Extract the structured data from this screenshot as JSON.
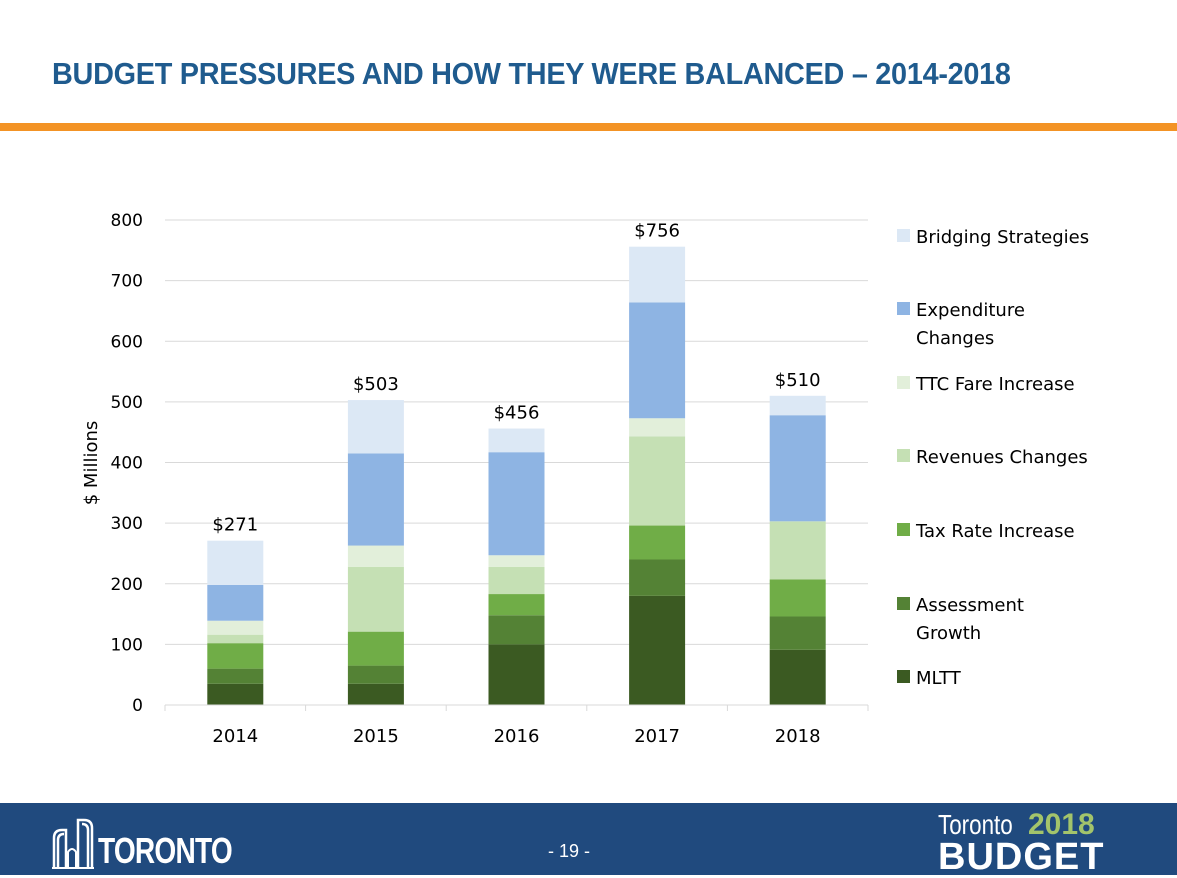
{
  "page": {
    "title": "BUDGET PRESSURES AND HOW THEY WERE BALANCED – 2014-2018",
    "page_number": "- 19 -",
    "logo_text": "TORONTO",
    "budget_logo": {
      "city": "Toronto",
      "year": "2018",
      "word": "BUDGET"
    }
  },
  "colors": {
    "title": "#1f5b8e",
    "accent_bar": "#f39325",
    "footer": "#204a7e"
  },
  "chart_data": {
    "type": "bar",
    "stacked": true,
    "title": "",
    "xlabel": "",
    "ylabel": "$ Millions",
    "ylim": [
      0,
      800
    ],
    "yticks": [
      0,
      100,
      200,
      300,
      400,
      500,
      600,
      700,
      800
    ],
    "ytick_labels": [
      "0",
      "100",
      "200",
      "300",
      "400",
      "500",
      "600",
      "700",
      "800"
    ],
    "grid": true,
    "legend_position": "right",
    "categories": [
      "2014",
      "2015",
      "2016",
      "2017",
      "2018"
    ],
    "totals": [
      271,
      503,
      456,
      756,
      510
    ],
    "total_labels": [
      "$271",
      "$503",
      "$456",
      "$756",
      "$510"
    ],
    "series": [
      {
        "name": "MLTT",
        "color": "#3b5a22",
        "values": [
          35,
          35,
          100,
          180,
          91
        ]
      },
      {
        "name": "Assessment Growth",
        "color": "#548235",
        "values": [
          25,
          30,
          48,
          60,
          55
        ]
      },
      {
        "name": "Tax Rate Increase",
        "color": "#70ad47",
        "values": [
          42,
          56,
          35,
          56,
          61
        ]
      },
      {
        "name": "Revenues Changes",
        "color": "#c5e0b4",
        "values": [
          14,
          107,
          45,
          147,
          96
        ]
      },
      {
        "name": "TTC Fare Increase",
        "color": "#e2efda",
        "values": [
          23,
          35,
          19,
          30,
          0
        ]
      },
      {
        "name": "Expenditure Changes",
        "color": "#8eb4e3",
        "values": [
          59,
          152,
          170,
          191,
          175
        ]
      },
      {
        "name": "Bridging Strategies",
        "color": "#dce8f5",
        "values": [
          73,
          88,
          39,
          92,
          32
        ]
      }
    ],
    "legend_order": [
      "Bridging Strategies",
      "Expenditure Changes",
      "TTC Fare Increase",
      "Revenues Changes",
      "Tax Rate Increase",
      "Assessment Growth",
      "MLTT"
    ],
    "legend_lines": [
      [
        "Bridging Strategies"
      ],
      [
        "Expenditure",
        "Changes"
      ],
      [
        "TTC Fare Increase"
      ],
      [
        "Revenues Changes"
      ],
      [
        "Tax Rate Increase"
      ],
      [
        "Assessment",
        "Growth"
      ],
      [
        "MLTT"
      ]
    ]
  }
}
